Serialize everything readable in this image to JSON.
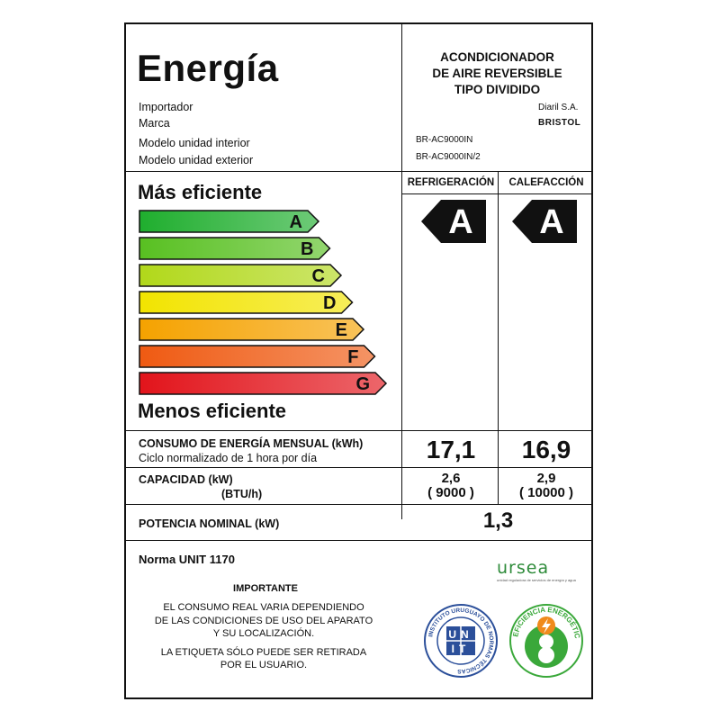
{
  "header": {
    "title": "Energía",
    "product": [
      "ACONDICIONADOR",
      "DE AIRE REVERSIBLE",
      "TIPO DIVIDIDO"
    ]
  },
  "info": {
    "importer_label": "Importador",
    "importer_value": "Diaril S.A.",
    "brand_label": "Marca",
    "brand_value": "BRISTOL",
    "indoor_label": "Modelo unidad interior",
    "indoor_value": "BR-AC9000IN",
    "outdoor_label": "Modelo unidad exterior",
    "outdoor_value": "BR-AC9000IN/2"
  },
  "scale": {
    "top_label": "Más eficiente",
    "bottom_label": "Menos eficiente",
    "classes": [
      {
        "letter": "A",
        "color": "#1fae2e"
      },
      {
        "letter": "B",
        "color": "#58c021"
      },
      {
        "letter": "C",
        "color": "#b1d81a"
      },
      {
        "letter": "D",
        "color": "#f2e400"
      },
      {
        "letter": "E",
        "color": "#f5a200"
      },
      {
        "letter": "F",
        "color": "#ef5a12"
      },
      {
        "letter": "G",
        "color": "#e2141b"
      }
    ]
  },
  "columns": {
    "cooling_label": "REFRIGERACIÓN",
    "heating_label": "CALEFACCIÓN",
    "cooling_class": "A",
    "heating_class": "A"
  },
  "consumption": {
    "label": "CONSUMO DE ENERGÍA MENSUAL  (kWh)",
    "sublabel": "Ciclo normalizado de 1 hora por día",
    "cooling": "17,1",
    "heating": "16,9"
  },
  "capacity": {
    "label": "CAPACIDAD   (kW)",
    "sublabel": "(BTU/h)",
    "cooling_kw": "2,6",
    "cooling_btu": "( 9000 )",
    "heating_kw": "2,9",
    "heating_btu": "( 10000 )"
  },
  "power": {
    "label": "POTENCIA NOMINAL  (kW)",
    "value": "1,3"
  },
  "footer": {
    "norm": "Norma UNIT 1170",
    "important_title": "IMPORTANTE",
    "notice_1": "EL CONSUMO REAL VARIA DEPENDIENDO",
    "notice_2": "DE LAS CONDICIONES DE  USO DEL APARATO",
    "notice_3": "Y SU LOCALIZACIÓN.",
    "notice_4": "LA ETIQUETA SÓLO PUEDE SER RETIRADA",
    "notice_5": "POR EL USUARIO."
  },
  "logos": {
    "ursea": "ursea",
    "ursea_tagline": "unidad reguladora de servicios de energía y agua",
    "unit_ring": "INSTITUTO URUGUAYO DE NORMAS TÉCNICAS",
    "unit_top": "UN",
    "unit_bottom": "IT",
    "efficiency_ring": "EFICIENCIA ENERGÉTICA"
  },
  "colors": {
    "frame": "#111111",
    "ursea_green": "#2e8b3a",
    "unit_blue": "#2b4f9a",
    "efficiency_green": "#3aa83a",
    "efficiency_orange": "#f08a1c"
  }
}
